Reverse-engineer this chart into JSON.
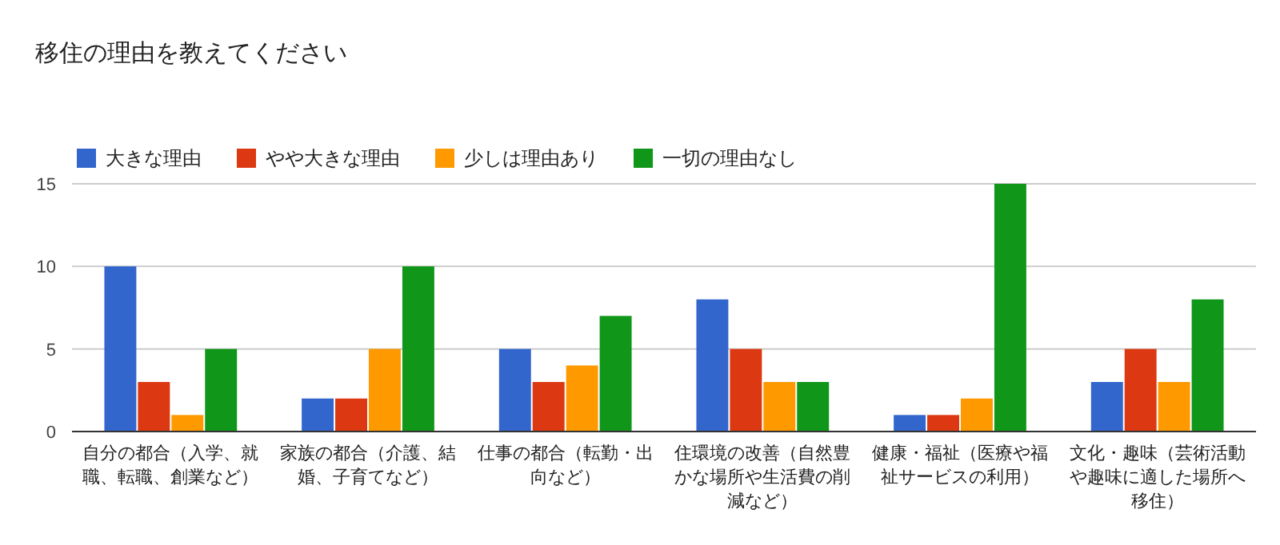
{
  "chart_data": {
    "type": "bar",
    "title": "移住の理由を教えてください",
    "categories": [
      "自分の都合（入学、就職、転職、創業など）",
      "家族の都合（介護、結婚、子育てなど）",
      "仕事の都合（転勤・出向など）",
      "住環境の改善（自然豊かな場所や生活費の削減など）",
      "健康・福祉（医療や福祉サービスの利用）",
      "文化・趣味（芸術活動や趣味に適した場所へ移住）"
    ],
    "series": [
      {
        "name": "大きな理由",
        "color": "#3366cc",
        "values": [
          10,
          2,
          5,
          8,
          1,
          3
        ]
      },
      {
        "name": "やや大きな理由",
        "color": "#dc3912",
        "values": [
          3,
          2,
          3,
          5,
          1,
          5
        ]
      },
      {
        "name": "少しは理由あり",
        "color": "#ff9900",
        "values": [
          1,
          5,
          4,
          3,
          2,
          3
        ]
      },
      {
        "name": "一切の理由なし",
        "color": "#109618",
        "values": [
          5,
          10,
          7,
          3,
          15,
          8
        ]
      }
    ],
    "ylim": [
      0,
      15
    ],
    "yticks": [
      0,
      5,
      10,
      15
    ],
    "grid": "y",
    "legend": "top left"
  }
}
